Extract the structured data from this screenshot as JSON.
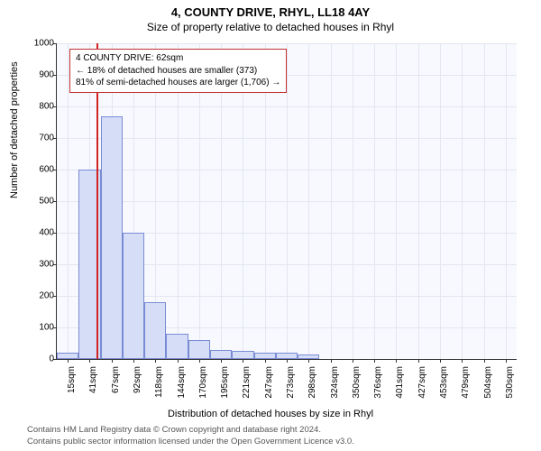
{
  "title_main": "4, COUNTY DRIVE, RHYL, LL18 4AY",
  "title_sub": "Size of property relative to detached houses in Rhyl",
  "ylabel": "Number of detached properties",
  "xlabel": "Distribution of detached houses by size in Rhyl",
  "chart": {
    "type": "histogram",
    "background_color": "#f8f9fe",
    "grid_color": "#e4e6f0",
    "axis_color": "#333333",
    "bar_fill": "#d6ddf6",
    "bar_border": "#7a8bd6",
    "ref_line_color": "#d02424",
    "ylim": [
      0,
      1000
    ],
    "ytick_step": 100,
    "xtick_labels": [
      "15sqm",
      "41sqm",
      "67sqm",
      "92sqm",
      "118sqm",
      "144sqm",
      "170sqm",
      "195sqm",
      "221sqm",
      "247sqm",
      "273sqm",
      "298sqm",
      "324sqm",
      "350sqm",
      "376sqm",
      "401sqm",
      "427sqm",
      "453sqm",
      "479sqm",
      "504sqm",
      "530sqm"
    ],
    "values": [
      20,
      600,
      770,
      400,
      180,
      80,
      60,
      30,
      25,
      20,
      20,
      15,
      0,
      0,
      0,
      0,
      0,
      0,
      0,
      0,
      0
    ],
    "annotation": {
      "line1": "4 COUNTY DRIVE: 62sqm",
      "line2": "← 18% of detached houses are smaller (373)",
      "line3": "81% of semi-detached houses are larger (1,706) →",
      "border_color": "#c03030"
    },
    "ref_line_bin_index": 2
  },
  "attribution": {
    "line1": "Contains HM Land Registry data © Crown copyright and database right 2024.",
    "line2": "Contains public sector information licensed under the Open Government Licence v3.0."
  },
  "fonts": {
    "title_fontsize": 13,
    "subtitle_fontsize": 12,
    "label_fontsize": 11,
    "tick_fontsize": 10,
    "annotation_fontsize": 10,
    "attribution_fontsize": 9.5
  }
}
